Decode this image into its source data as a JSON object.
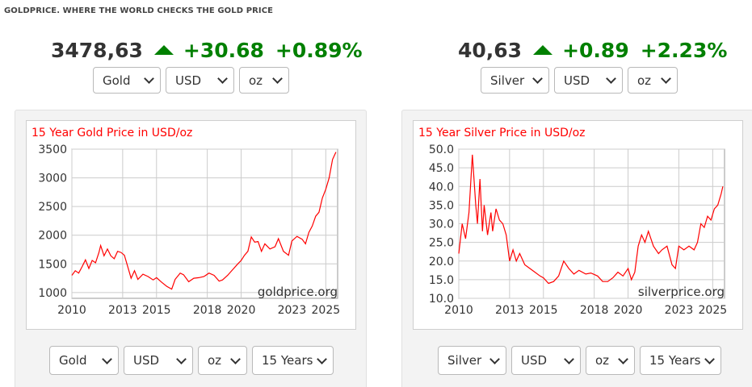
{
  "header": {
    "tagline": "GOLDPRICE. WHERE THE WORLD CHECKS THE GOLD PRICE"
  },
  "gold": {
    "price": "3478,63",
    "change": "+30.68",
    "change_pct": "+0.89%",
    "metal_select": "Gold",
    "currency_select": "USD",
    "unit_select": "oz",
    "period_select": "15 Years"
  },
  "silver": {
    "price": "40,63",
    "change": "+0.89",
    "change_pct": "+2.23%",
    "metal_select": "Silver",
    "currency_select": "USD",
    "unit_select": "oz",
    "period_select": "15 Years"
  },
  "colors": {
    "up": "#008000",
    "line": "#ff0000",
    "title": "#ff0000"
  },
  "chart_data": [
    {
      "type": "line",
      "title": "15 Year Gold Price in USD/oz",
      "watermark": "goldprice.org",
      "x_ticks": [
        "2010",
        "2013",
        "2015",
        "2018",
        "2020",
        "2023",
        "2025"
      ],
      "y_ticks": [
        "1000",
        "1500",
        "2000",
        "2500",
        "3000",
        "3500"
      ],
      "xlim": [
        2010,
        2025.7
      ],
      "ylim": [
        900,
        3500
      ],
      "grid": true,
      "series": [
        {
          "x": [
            2010.0,
            2010.2,
            2010.4,
            2010.6,
            2010.8,
            2011.0,
            2011.2,
            2011.4,
            2011.6,
            2011.7,
            2011.9,
            2012.1,
            2012.3,
            2012.5,
            2012.7,
            2012.9,
            2013.1,
            2013.3,
            2013.5,
            2013.7,
            2013.9,
            2014.2,
            2014.5,
            2014.8,
            2015.0,
            2015.3,
            2015.6,
            2015.9,
            2016.1,
            2016.4,
            2016.6,
            2016.9,
            2017.2,
            2017.5,
            2017.8,
            2018.1,
            2018.4,
            2018.7,
            2018.9,
            2019.2,
            2019.5,
            2019.8,
            2020.0,
            2020.2,
            2020.4,
            2020.6,
            2020.8,
            2021.0,
            2021.2,
            2021.4,
            2021.7,
            2022.0,
            2022.2,
            2022.5,
            2022.8,
            2023.0,
            2023.3,
            2023.6,
            2023.8,
            2024.0,
            2024.2,
            2024.4,
            2024.6,
            2024.8,
            2025.0,
            2025.2,
            2025.4,
            2025.6
          ],
          "values": [
            1300,
            1380,
            1340,
            1450,
            1570,
            1420,
            1560,
            1520,
            1700,
            1820,
            1640,
            1760,
            1640,
            1590,
            1720,
            1700,
            1650,
            1450,
            1250,
            1380,
            1230,
            1320,
            1280,
            1220,
            1260,
            1180,
            1110,
            1060,
            1230,
            1340,
            1310,
            1190,
            1250,
            1260,
            1280,
            1340,
            1300,
            1200,
            1220,
            1300,
            1400,
            1500,
            1560,
            1650,
            1720,
            1970,
            1880,
            1890,
            1720,
            1850,
            1760,
            1800,
            1940,
            1720,
            1650,
            1900,
            1980,
            1930,
            1850,
            2050,
            2160,
            2330,
            2400,
            2650,
            2800,
            3000,
            3320,
            3450
          ]
        }
      ]
    },
    {
      "type": "line",
      "title": "15 Year Silver Price in USD/oz",
      "watermark": "silverprice.org",
      "x_ticks": [
        "2010",
        "2013",
        "2015",
        "2018",
        "2020",
        "2023",
        "2025"
      ],
      "y_ticks": [
        "10.0",
        "15.0",
        "20.0",
        "25.0",
        "30.0",
        "35.0",
        "40.0",
        "45.0",
        "50.0"
      ],
      "xlim": [
        2010,
        2025.7
      ],
      "ylim": [
        10,
        50
      ],
      "grid": true,
      "series": [
        {
          "x": [
            2010.0,
            2010.2,
            2010.4,
            2010.6,
            2010.8,
            2011.0,
            2011.1,
            2011.25,
            2011.4,
            2011.5,
            2011.7,
            2011.9,
            2012.0,
            2012.2,
            2012.4,
            2012.6,
            2012.8,
            2013.0,
            2013.2,
            2013.4,
            2013.6,
            2013.9,
            2014.2,
            2014.5,
            2014.8,
            2015.0,
            2015.3,
            2015.6,
            2015.9,
            2016.2,
            2016.5,
            2016.8,
            2017.1,
            2017.5,
            2017.8,
            2018.2,
            2018.5,
            2018.8,
            2019.1,
            2019.4,
            2019.7,
            2020.0,
            2020.2,
            2020.4,
            2020.6,
            2020.8,
            2021.0,
            2021.2,
            2021.5,
            2021.8,
            2022.0,
            2022.3,
            2022.6,
            2022.8,
            2023.0,
            2023.3,
            2023.6,
            2023.9,
            2024.1,
            2024.3,
            2024.5,
            2024.7,
            2024.9,
            2025.1,
            2025.3,
            2025.5,
            2025.6
          ],
          "values": [
            22.0,
            30.0,
            26.0,
            33.0,
            48.5,
            35.0,
            30.0,
            42.0,
            28.0,
            35.0,
            27.0,
            33.0,
            28.0,
            34.0,
            31.0,
            30.0,
            27.0,
            20.0,
            23.0,
            20.0,
            22.0,
            19.0,
            18.0,
            17.0,
            16.0,
            15.5,
            14.0,
            14.5,
            16.0,
            20.0,
            18.0,
            16.5,
            17.5,
            16.5,
            16.8,
            16.0,
            14.5,
            14.5,
            15.5,
            17.0,
            16.0,
            18.0,
            15.0,
            17.0,
            24.0,
            27.0,
            25.0,
            28.0,
            24.0,
            22.0,
            23.0,
            24.0,
            19.0,
            18.0,
            24.0,
            23.0,
            24.0,
            23.0,
            25.0,
            30.0,
            29.0,
            32.0,
            31.0,
            34.0,
            35.0,
            38.0,
            40.0
          ]
        }
      ]
    }
  ]
}
